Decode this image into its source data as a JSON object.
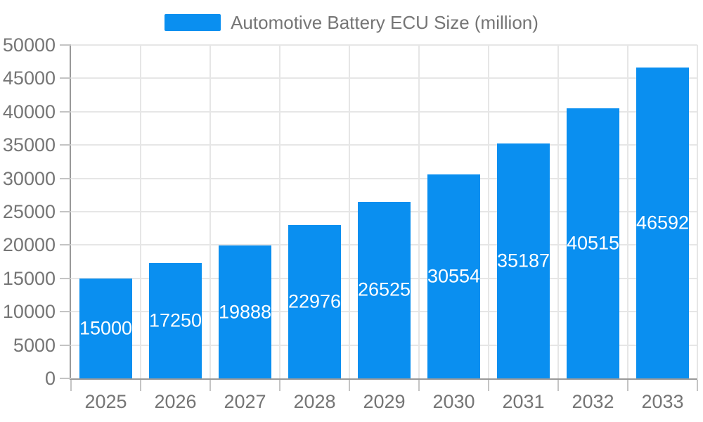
{
  "colors": {
    "bar": "#0A8FF0",
    "axis": "#999999",
    "grid": "#E6E6E6",
    "tick": "#C4C4C4",
    "axis_text": "#757575",
    "bar_label_text": "#FFFFFF",
    "background": "#FFFFFF"
  },
  "legend": {
    "label": "Automotive Battery ECU Size (million)",
    "position": "top"
  },
  "chart_data": {
    "type": "bar",
    "title": "Automotive Battery ECU Size (million)",
    "categories": [
      "2025",
      "2026",
      "2027",
      "2028",
      "2029",
      "2030",
      "2031",
      "2032",
      "2033"
    ],
    "series": [
      {
        "name": "Automotive Battery ECU Size (million)",
        "values": [
          15000,
          17250,
          19888,
          22976,
          26525,
          30554,
          35187,
          40515,
          46592
        ]
      }
    ],
    "xlabel": "",
    "ylabel": "",
    "ylim": [
      0,
      50000
    ],
    "ytick_step": 5000,
    "y_tick_labels": [
      "0",
      "5000",
      "10000",
      "15000",
      "20000",
      "25000",
      "30000",
      "35000",
      "40000",
      "45000",
      "50000"
    ],
    "grid": true,
    "legend_position": "top-center",
    "value_labels": "inside-center"
  }
}
